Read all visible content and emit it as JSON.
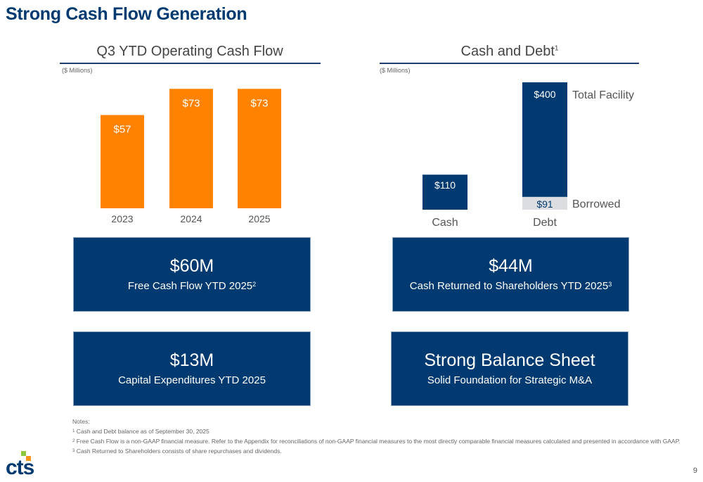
{
  "page": {
    "title": "Strong Cash Flow Generation",
    "page_number": "9"
  },
  "colors": {
    "brand_navy": "#003a70",
    "orange": "#ff8300",
    "light_gray": "#dcdde0",
    "logo_green": "#8dc63f",
    "logo_orange": "#f7941d"
  },
  "chart_data": [
    {
      "type": "bar",
      "title": "Q3 YTD Operating Cash Flow",
      "units": "($ Millions)",
      "xlabel": "",
      "ylabel": "",
      "categories": [
        "2023",
        "2024",
        "2025"
      ],
      "values": [
        57,
        73,
        73
      ],
      "data_labels": [
        "$57",
        "$73",
        "$73"
      ],
      "ylim": [
        0,
        80
      ],
      "grid": false,
      "legend": "none",
      "color": "#ff8300"
    },
    {
      "type": "bar",
      "title": "Cash and Debt",
      "title_footnote": "1",
      "units": "($ Millions)",
      "categories": [
        "Cash",
        "Debt"
      ],
      "series": [
        {
          "name": "Cash",
          "values": [
            110,
            null
          ],
          "data_labels": [
            "$110",
            null
          ],
          "color": "#003a70"
        },
        {
          "name": "Borrowed",
          "values": [
            null,
            91
          ],
          "data_labels": [
            null,
            "$91"
          ],
          "color": "#dcdde0"
        },
        {
          "name": "Total Facility",
          "values": [
            null,
            400
          ],
          "data_labels": [
            null,
            "$400"
          ],
          "color": "#003a70"
        }
      ],
      "annotations": [
        "Total Facility",
        "Borrowed"
      ],
      "ylim": [
        0,
        400
      ],
      "grid": false,
      "legend": "right-side labels"
    }
  ],
  "kpis": [
    {
      "value": "$60M",
      "label": "Free Cash Flow YTD 2025",
      "footnote": "2"
    },
    {
      "value": "$44M",
      "label": "Cash Returned to Shareholders YTD 2025",
      "footnote": "3"
    },
    {
      "value": "$13M",
      "label": "Capital Expenditures YTD 2025",
      "footnote": ""
    },
    {
      "value": "Strong Balance Sheet",
      "label": "Solid Foundation for Strategic M&A",
      "footnote": ""
    }
  ],
  "notes": {
    "heading": "Notes:",
    "items": [
      {
        "num": "1",
        "text": "Cash and Debt balance as of September 30, 2025"
      },
      {
        "num": "2",
        "text": "Free Cash Flow is a non-GAAP financial measure.  Refer to the Appendix for reconciliations of non-GAAP financial measures to the most directly comparable financial measures calculated and presented in accordance with GAAP."
      },
      {
        "num": "3",
        "text": "Cash Returned to Shareholders consists of share repurchases and dividends."
      }
    ]
  },
  "logo": {
    "text": "cts"
  }
}
